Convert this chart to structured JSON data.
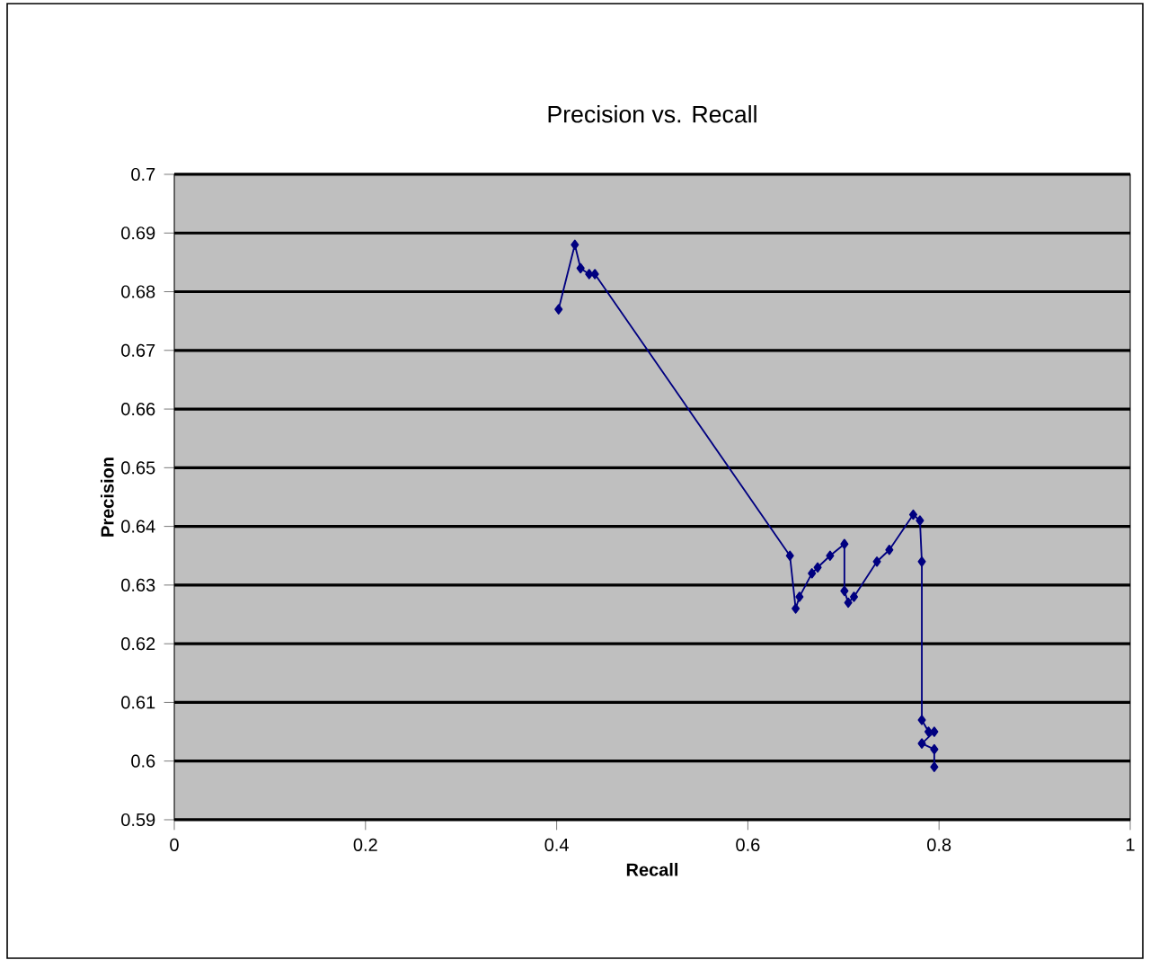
{
  "chart_data": {
    "type": "line",
    "title": "Precision vs. Recall",
    "xlabel": "Recall",
    "ylabel": "Precision",
    "x": [
      0.402,
      0.419,
      0.425,
      0.434,
      0.44,
      0.644,
      0.65,
      0.654,
      0.667,
      0.673,
      0.686,
      0.701,
      0.701,
      0.705,
      0.711,
      0.735,
      0.748,
      0.773,
      0.78,
      0.782,
      0.782,
      0.789,
      0.795,
      0.782,
      0.795,
      0.795
    ],
    "values": [
      0.677,
      0.688,
      0.684,
      0.683,
      0.683,
      0.635,
      0.626,
      0.628,
      0.632,
      0.633,
      0.635,
      0.637,
      0.629,
      0.627,
      0.628,
      0.634,
      0.636,
      0.642,
      0.641,
      0.634,
      0.607,
      0.605,
      0.605,
      0.603,
      0.602,
      0.599
    ],
    "color": "#000080",
    "marker": "diamond",
    "line_style": "solid",
    "grid": "y",
    "xlim": [
      0,
      1
    ],
    "ylim": [
      0.59,
      0.7
    ],
    "xticks": [
      0,
      0.2,
      0.4,
      0.6,
      0.8,
      1
    ],
    "yticks": [
      0.59,
      0.6,
      0.61,
      0.62,
      0.63,
      0.64,
      0.65,
      0.66,
      0.67,
      0.68,
      0.69,
      0.7
    ]
  }
}
